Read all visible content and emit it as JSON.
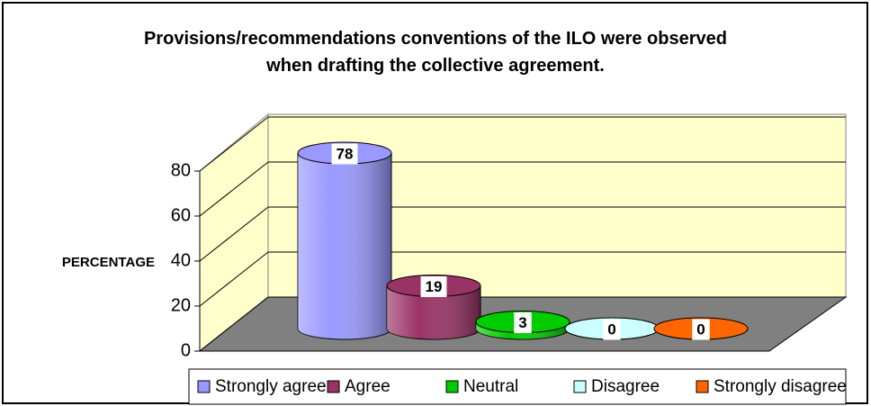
{
  "chart_data": {
    "type": "bar",
    "title": "Provisions/recommendations conventions of the ILO were observed when drafting the collective agreement.",
    "y_label": "PERCENTAGE",
    "categories": [
      "Strongly agree",
      "Agree",
      "Neutral",
      "Disagree",
      "Strongly disagree"
    ],
    "values": [
      78,
      19,
      3,
      0,
      0
    ],
    "colors": [
      "#9999ff",
      "#993366",
      "#00cc00",
      "#ccffff",
      "#ff6600"
    ],
    "ylim": [
      0,
      80
    ],
    "yticks": [
      0,
      20,
      40,
      60,
      80
    ],
    "grid": true
  }
}
